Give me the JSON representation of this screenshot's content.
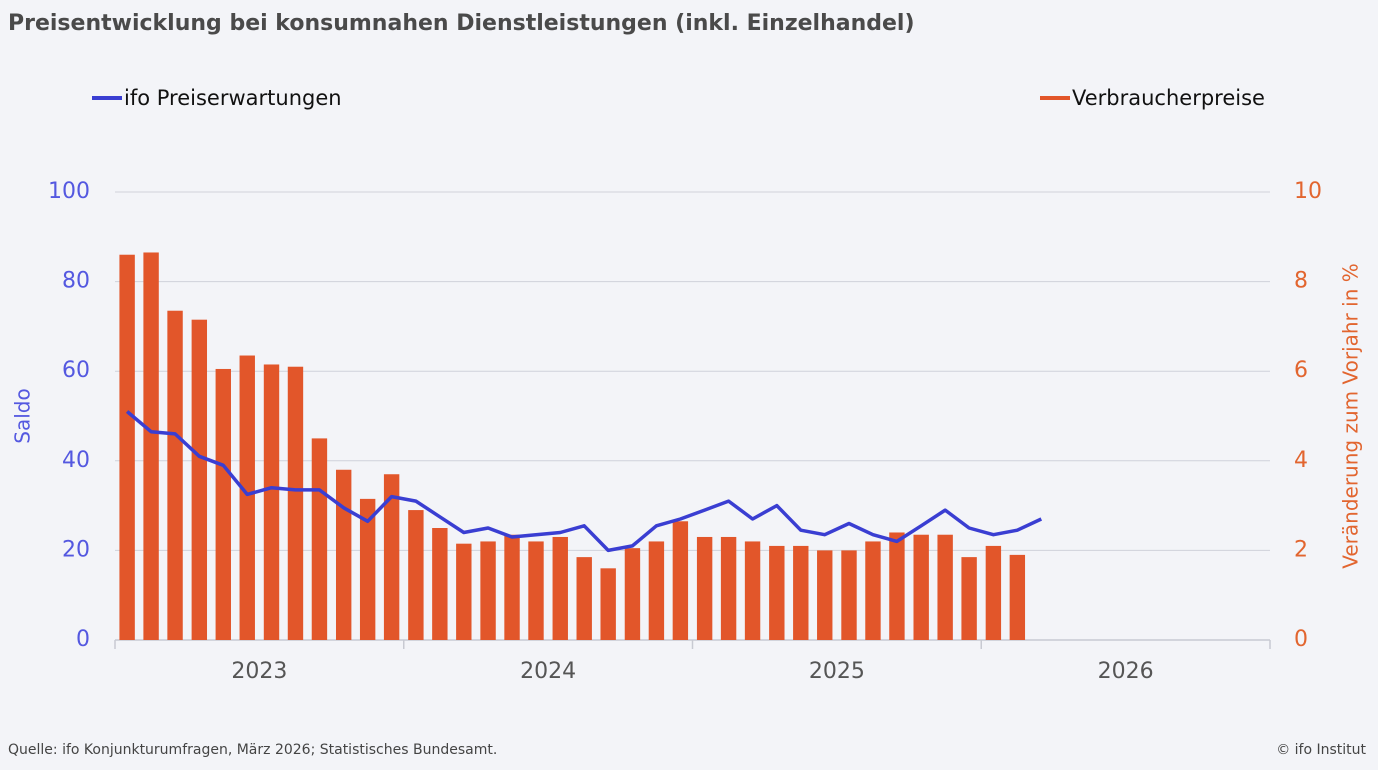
{
  "chart_data": {
    "type": "bar-line",
    "title": "Preisentwicklung bei konsumnahen Dienstleistungen (inkl. Einzelhandel)",
    "source": "Quelle: ifo Konjunkturumfragen,  März 2026; Statistisches  Bundesamt.",
    "copyright": "© ifo Institut",
    "ylabel": "Saldo",
    "y2label": "Veränderung zum Vorjahr in %",
    "x": [
      2023.042,
      2023.125,
      2023.208,
      2023.292,
      2023.375,
      2023.458,
      2023.542,
      2023.625,
      2023.708,
      2023.792,
      2023.875,
      2023.958,
      2024.042,
      2024.125,
      2024.208,
      2024.292,
      2024.375,
      2024.458,
      2024.542,
      2024.625,
      2024.708,
      2024.792,
      2024.875,
      2024.958,
      2025.042,
      2025.125,
      2025.208,
      2025.292,
      2025.375,
      2025.458,
      2025.542,
      2025.625,
      2025.708,
      2025.792,
      2025.875,
      2025.958,
      2026.042,
      2026.125,
      2026.208
    ],
    "xlim": [
      2023,
      2027
    ],
    "xticks": [
      2023,
      2024,
      2025,
      2026,
      2027
    ],
    "xlabels": [
      {
        "value": 2023.5,
        "label": "2023"
      },
      {
        "value": 2024.5,
        "label": "2024"
      },
      {
        "value": 2025.5,
        "label": "2025"
      },
      {
        "value": 2026.5,
        "label": "2026"
      }
    ],
    "ylim": [
      0,
      100
    ],
    "yticks": [
      0,
      20,
      40,
      60,
      80,
      100
    ],
    "y2lim": [
      0,
      10
    ],
    "y2ticks": [
      0,
      2,
      4,
      6,
      8,
      10
    ],
    "grid": true,
    "series": [
      {
        "name": "ifo Preiserwartungen",
        "type": "line",
        "color": "#3a3ed2",
        "values": [
          51,
          46.5,
          46,
          41,
          39,
          32.5,
          34,
          33.5,
          33.5,
          29.5,
          26.5,
          32,
          31,
          27.5,
          24,
          25,
          23,
          23.5,
          24,
          25.5,
          20,
          21,
          25.5,
          27,
          29,
          31,
          27,
          30,
          24.5,
          23.5,
          26,
          23.5,
          22,
          25.5,
          29,
          25,
          23.5,
          24.5,
          27
        ]
      },
      {
        "name": "Verbraucherpreise",
        "type": "bar",
        "axis": "y2",
        "color": "#e2562a",
        "values": [
          8.6,
          8.65,
          7.35,
          7.15,
          6.05,
          6.35,
          6.15,
          6.1,
          4.5,
          3.8,
          3.15,
          3.7,
          2.9,
          2.5,
          2.15,
          2.2,
          2.35,
          2.2,
          2.3,
          1.85,
          1.6,
          2.05,
          2.2,
          2.65,
          2.3,
          2.3,
          2.2,
          2.1,
          2.1,
          2.0,
          2.0,
          2.2,
          2.4,
          2.35,
          2.35,
          1.85,
          2.1,
          1.9,
          null
        ]
      }
    ]
  }
}
